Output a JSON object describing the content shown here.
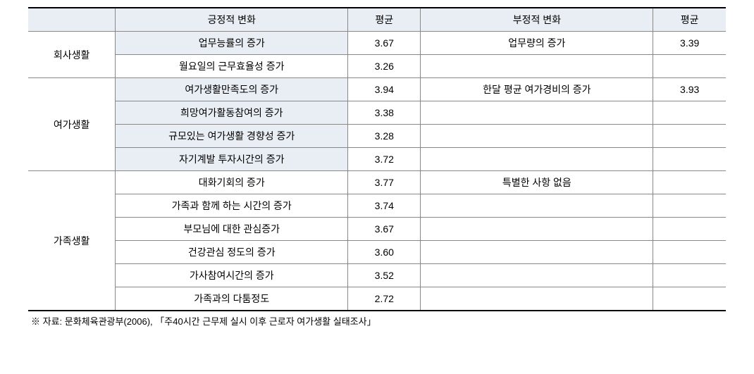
{
  "headers": {
    "positive": "긍정적 변화",
    "avg1": "평균",
    "negative": "부정적 변화",
    "avg2": "평균"
  },
  "sections": [
    {
      "category": "회사생활",
      "rows": [
        {
          "pos": "업무능률의 증가",
          "avg1": "3.67",
          "neg": "업무량의 증가",
          "avg2": "3.39",
          "shaded": true
        },
        {
          "pos": "월요일의 근무효율성 증가",
          "avg1": "3.26",
          "neg": "",
          "avg2": "",
          "shaded": false
        }
      ]
    },
    {
      "category": "여가생활",
      "rows": [
        {
          "pos": "여가생활만족도의 증가",
          "avg1": "3.94",
          "neg": "한달 평균 여가경비의 증가",
          "avg2": "3.93",
          "shaded": true
        },
        {
          "pos": "희망여가활동참여의 증가",
          "avg1": "3.38",
          "neg": "",
          "avg2": "",
          "shaded": true
        },
        {
          "pos": "규모있는 여가생활 경향성 증가",
          "avg1": "3.28",
          "neg": "",
          "avg2": "",
          "shaded": true
        },
        {
          "pos": "자기계발 투자시간의 증가",
          "avg1": "3.72",
          "neg": "",
          "avg2": "",
          "shaded": true
        }
      ]
    },
    {
      "category": "가족생활",
      "rows": [
        {
          "pos": "대화기회의 증가",
          "avg1": "3.77",
          "neg": "특별한 사항 없음",
          "avg2": "",
          "shaded": false
        },
        {
          "pos": "가족과 함께 하는 시간의 증가",
          "avg1": "3.74",
          "neg": "",
          "avg2": "",
          "shaded": false
        },
        {
          "pos": "부모님에 대한 관심증가",
          "avg1": "3.67",
          "neg": "",
          "avg2": "",
          "shaded": false
        },
        {
          "pos": "건강관심 정도의 증가",
          "avg1": "3.60",
          "neg": "",
          "avg2": "",
          "shaded": false
        },
        {
          "pos": "가사참여시간의 증가",
          "avg1": "3.52",
          "neg": "",
          "avg2": "",
          "shaded": false
        },
        {
          "pos": "가족과의 다툼정도",
          "avg1": "2.72",
          "neg": "",
          "avg2": "",
          "shaded": false
        }
      ]
    }
  ],
  "source": "※ 자료: 문화체육관광부(2006), 「주40시간 근무제 실시 이후 근로자 여가생활 실태조사」"
}
